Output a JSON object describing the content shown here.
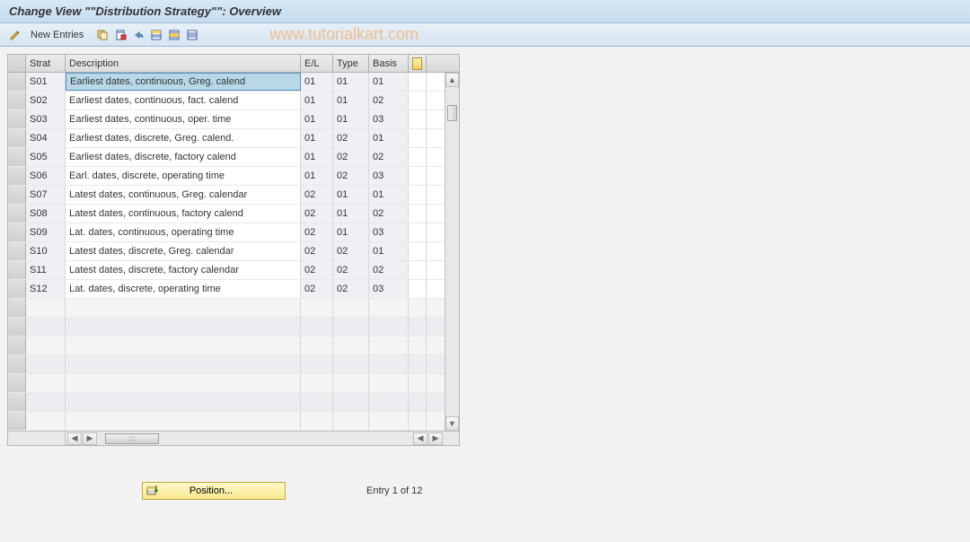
{
  "title": "Change View \"\"Distribution Strategy\"\": Overview",
  "toolbar": {
    "new_entries": "New Entries"
  },
  "watermark": "www.tutorialkart.com",
  "table": {
    "headers": {
      "strat": "Strat",
      "description": "Description",
      "el": "E/L",
      "type": "Type",
      "basis": "Basis"
    },
    "rows": [
      {
        "strat": "S01",
        "desc": "Earliest dates, continuous, Greg. calend",
        "el": "01",
        "type": "01",
        "basis": "01",
        "selected": true
      },
      {
        "strat": "S02",
        "desc": "Earliest dates, continuous, fact. calend",
        "el": "01",
        "type": "01",
        "basis": "02"
      },
      {
        "strat": "S03",
        "desc": "Earliest dates, continuous, oper. time",
        "el": "01",
        "type": "01",
        "basis": "03"
      },
      {
        "strat": "S04",
        "desc": "Earliest dates, discrete, Greg. calend.",
        "el": "01",
        "type": "02",
        "basis": "01"
      },
      {
        "strat": "S05",
        "desc": "Earliest dates, discrete, factory calend",
        "el": "01",
        "type": "02",
        "basis": "02"
      },
      {
        "strat": "S06",
        "desc": "Earl. dates, discrete, operating time",
        "el": "01",
        "type": "02",
        "basis": "03"
      },
      {
        "strat": "S07",
        "desc": "Latest dates, continuous, Greg. calendar",
        "el": "02",
        "type": "01",
        "basis": "01"
      },
      {
        "strat": "S08",
        "desc": "Latest dates, continuous, factory calend",
        "el": "02",
        "type": "01",
        "basis": "02"
      },
      {
        "strat": "S09",
        "desc": "Lat. dates, continuous, operating time",
        "el": "02",
        "type": "01",
        "basis": "03"
      },
      {
        "strat": "S10",
        "desc": "Latest dates, discrete, Greg. calendar",
        "el": "02",
        "type": "02",
        "basis": "01"
      },
      {
        "strat": "S11",
        "desc": "Latest dates, discrete, factory calendar",
        "el": "02",
        "type": "02",
        "basis": "02"
      },
      {
        "strat": "S12",
        "desc": "Lat. dates, discrete, operating time",
        "el": "02",
        "type": "02",
        "basis": "03"
      }
    ],
    "empty_rows": 7
  },
  "footer": {
    "position_label": "Position...",
    "entry_text": "Entry 1 of 12"
  },
  "colors": {
    "title_bg_top": "#d8e8f5",
    "title_bg_bottom": "#c5dcef",
    "toolbar_bg_top": "#e8f0f8",
    "toolbar_bg_bottom": "#d5e5f2",
    "content_bg": "#f2f2f2",
    "header_cell_bg": "#e4e4e4",
    "readonly_bg": "#eef0f4",
    "editable_bg": "#ffffff",
    "selected_bg": "#b8d8e8",
    "position_btn_bg": "#f8e890",
    "watermark_color": "#ff9933"
  }
}
